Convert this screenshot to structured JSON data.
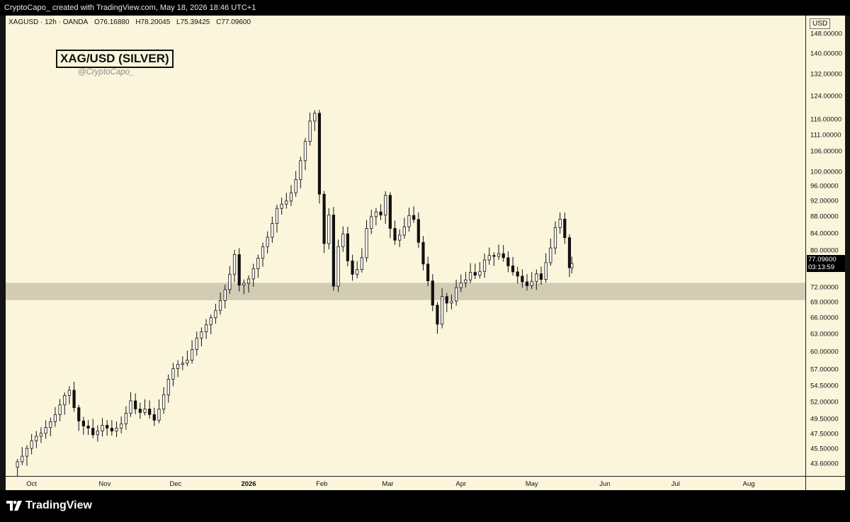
{
  "header": {
    "attribution": "CryptoCapo_ created with TradingView.com, May 18, 2026 18:46 UTC+1"
  },
  "legend": {
    "symbol_line": "XAGUSD · 12h · OANDA",
    "open": "O76.16880",
    "high": "H78.20045",
    "low": "L75.39425",
    "close": "C77.09600"
  },
  "chart_title": "XAG/USD (SILVER)",
  "author_handle": "@CryptoCapo_",
  "price_axis": {
    "currency": "USD",
    "ticks": [
      "148.00000",
      "140.00000",
      "132.00000",
      "124.00000",
      "116.00000",
      "111.00000",
      "106.00000",
      "100.00000",
      "96.00000",
      "92.00000",
      "88.00000",
      "84.00000",
      "80.00000",
      "77.09600",
      "72.00000",
      "69.00000",
      "66.00000",
      "63.00000",
      "60.00000",
      "57.00000",
      "54.50000",
      "52.00000",
      "49.50000",
      "47.50000",
      "45.50000",
      "43.60000"
    ],
    "last_price": "77.09600",
    "countdown": "03:13:59"
  },
  "time_axis": {
    "labels": [
      "Oct",
      "Nov",
      "Dec",
      "2026",
      "Feb",
      "Mar",
      "Apr",
      "May",
      "Jun",
      "Jul",
      "Aug"
    ]
  },
  "footer": {
    "brand": "TradingView"
  },
  "colors": {
    "background": "#fbf5dc",
    "candle_up": "#ffffff",
    "candle_down": "#111111",
    "zone": "#d3ccb5"
  },
  "chart_data": {
    "type": "candlestick",
    "symbol": "XAGUSD",
    "interval": "12h",
    "exchange": "OANDA",
    "scale": "log",
    "ylim": [
      43.0,
      150.0
    ],
    "support_zone": [
      69.5,
      73.0
    ],
    "series": [
      {
        "date": "2025-09-25",
        "close": 43.9
      },
      {
        "date": "2025-09-27",
        "close": 44.6
      },
      {
        "date": "2025-09-29",
        "close": 45.6
      },
      {
        "date": "2025-10-01",
        "close": 46.6
      },
      {
        "date": "2025-10-03",
        "close": 47.2
      },
      {
        "date": "2025-10-05",
        "close": 47.6
      },
      {
        "date": "2025-10-07",
        "close": 48.4
      },
      {
        "date": "2025-10-09",
        "close": 49.2
      },
      {
        "date": "2025-10-11",
        "close": 50.2
      },
      {
        "date": "2025-10-13",
        "close": 51.6
      },
      {
        "date": "2025-10-15",
        "close": 53.0
      },
      {
        "date": "2025-10-17",
        "close": 53.8
      },
      {
        "date": "2025-10-19",
        "close": 51.2
      },
      {
        "date": "2025-10-21",
        "close": 49.3
      },
      {
        "date": "2025-10-23",
        "close": 48.6
      },
      {
        "date": "2025-10-25",
        "close": 48.3
      },
      {
        "date": "2025-10-27",
        "close": 47.4
      },
      {
        "date": "2025-10-29",
        "close": 47.9
      },
      {
        "date": "2025-10-31",
        "close": 48.7
      },
      {
        "date": "2025-11-02",
        "close": 48.3
      },
      {
        "date": "2025-11-04",
        "close": 47.9
      },
      {
        "date": "2025-11-06",
        "close": 48.3
      },
      {
        "date": "2025-11-08",
        "close": 48.9
      },
      {
        "date": "2025-11-10",
        "close": 50.4
      },
      {
        "date": "2025-11-12",
        "close": 52.2
      },
      {
        "date": "2025-11-14",
        "close": 51.0
      },
      {
        "date": "2025-11-16",
        "close": 50.5
      },
      {
        "date": "2025-11-18",
        "close": 51.0
      },
      {
        "date": "2025-11-20",
        "close": 50.2
      },
      {
        "date": "2025-11-22",
        "close": 49.4
      },
      {
        "date": "2025-11-24",
        "close": 51.0
      },
      {
        "date": "2025-11-26",
        "close": 53.1
      },
      {
        "date": "2025-11-28",
        "close": 55.5
      },
      {
        "date": "2025-11-30",
        "close": 57.2
      },
      {
        "date": "2025-12-02",
        "close": 57.9
      },
      {
        "date": "2025-12-04",
        "close": 58.1
      },
      {
        "date": "2025-12-06",
        "close": 58.6
      },
      {
        "date": "2025-12-08",
        "close": 60.4
      },
      {
        "date": "2025-12-10",
        "close": 62.4
      },
      {
        "date": "2025-12-12",
        "close": 63.5
      },
      {
        "date": "2025-12-14",
        "close": 64.8
      },
      {
        "date": "2025-12-16",
        "close": 66.1
      },
      {
        "date": "2025-12-18",
        "close": 67.5
      },
      {
        "date": "2025-12-20",
        "close": 69.4
      },
      {
        "date": "2025-12-22",
        "close": 71.6
      },
      {
        "date": "2025-12-24",
        "close": 74.8
      },
      {
        "date": "2025-12-26",
        "close": 79.1
      },
      {
        "date": "2025-12-28",
        "close": 72.5
      },
      {
        "date": "2025-12-30",
        "close": 72.9
      },
      {
        "date": "2026-01-01",
        "close": 73.8
      },
      {
        "date": "2026-01-03",
        "close": 76.0
      },
      {
        "date": "2026-01-05",
        "close": 78.3
      },
      {
        "date": "2026-01-07",
        "close": 80.9
      },
      {
        "date": "2026-01-09",
        "close": 83.1
      },
      {
        "date": "2026-01-11",
        "close": 86.4
      },
      {
        "date": "2026-01-13",
        "close": 90.2
      },
      {
        "date": "2026-01-15",
        "close": 91.3
      },
      {
        "date": "2026-01-17",
        "close": 92.1
      },
      {
        "date": "2026-01-19",
        "close": 94.3
      },
      {
        "date": "2026-01-21",
        "close": 97.9
      },
      {
        "date": "2026-01-23",
        "close": 103.3
      },
      {
        "date": "2026-01-25",
        "close": 109.1
      },
      {
        "date": "2026-01-27",
        "close": 115.6
      },
      {
        "date": "2026-01-29",
        "close": 118.2
      },
      {
        "date": "2026-01-31",
        "close": 93.9
      },
      {
        "date": "2026-02-02",
        "close": 81.6
      },
      {
        "date": "2026-02-04",
        "close": 88.5
      },
      {
        "date": "2026-02-06",
        "close": 72.3
      },
      {
        "date": "2026-02-08",
        "close": 80.9
      },
      {
        "date": "2026-02-10",
        "close": 83.9
      },
      {
        "date": "2026-02-12",
        "close": 77.7
      },
      {
        "date": "2026-02-14",
        "close": 74.8
      },
      {
        "date": "2026-02-16",
        "close": 75.8
      },
      {
        "date": "2026-02-18",
        "close": 78.4
      },
      {
        "date": "2026-02-20",
        "close": 85.2
      },
      {
        "date": "2026-02-22",
        "close": 88.1
      },
      {
        "date": "2026-02-24",
        "close": 89.3
      },
      {
        "date": "2026-02-26",
        "close": 88.5
      },
      {
        "date": "2026-02-28",
        "close": 93.6
      },
      {
        "date": "2026-03-02",
        "close": 85.2
      },
      {
        "date": "2026-03-04",
        "close": 82.4
      },
      {
        "date": "2026-03-06",
        "close": 83.6
      },
      {
        "date": "2026-03-08",
        "close": 85.6
      },
      {
        "date": "2026-03-10",
        "close": 88.4
      },
      {
        "date": "2026-03-12",
        "close": 87.4
      },
      {
        "date": "2026-03-14",
        "close": 81.9
      },
      {
        "date": "2026-03-16",
        "close": 77.0
      },
      {
        "date": "2026-03-18",
        "close": 73.4
      },
      {
        "date": "2026-03-20",
        "close": 68.5
      },
      {
        "date": "2026-03-22",
        "close": 64.9
      },
      {
        "date": "2026-03-24",
        "close": 70.2
      },
      {
        "date": "2026-03-26",
        "close": 68.9
      },
      {
        "date": "2026-03-28",
        "close": 69.3
      },
      {
        "date": "2026-03-30",
        "close": 72.0
      },
      {
        "date": "2026-04-01",
        "close": 73.0
      },
      {
        "date": "2026-04-03",
        "close": 73.6
      },
      {
        "date": "2026-04-05",
        "close": 75.2
      },
      {
        "date": "2026-04-07",
        "close": 74.6
      },
      {
        "date": "2026-04-09",
        "close": 75.4
      },
      {
        "date": "2026-04-11",
        "close": 77.9
      },
      {
        "date": "2026-04-13",
        "close": 78.9
      },
      {
        "date": "2026-04-15",
        "close": 78.7
      },
      {
        "date": "2026-04-17",
        "close": 79.3
      },
      {
        "date": "2026-04-19",
        "close": 78.4
      },
      {
        "date": "2026-04-21",
        "close": 76.6
      },
      {
        "date": "2026-04-23",
        "close": 75.3
      },
      {
        "date": "2026-04-25",
        "close": 74.4
      },
      {
        "date": "2026-04-27",
        "close": 73.2
      },
      {
        "date": "2026-04-29",
        "close": 72.4
      },
      {
        "date": "2026-05-01",
        "close": 73.3
      },
      {
        "date": "2026-05-03",
        "close": 74.9
      },
      {
        "date": "2026-05-05",
        "close": 73.7
      },
      {
        "date": "2026-05-07",
        "close": 77.3
      },
      {
        "date": "2026-05-09",
        "close": 80.6
      },
      {
        "date": "2026-05-11",
        "close": 85.4
      },
      {
        "date": "2026-05-13",
        "close": 87.5
      },
      {
        "date": "2026-05-15",
        "close": 83.0
      },
      {
        "date": "2026-05-17",
        "close": 76.2
      },
      {
        "date": "2026-05-18",
        "close": 77.1
      }
    ],
    "xlim": [
      "2025-09-20",
      "2026-08-25"
    ],
    "x_ticks": [
      {
        "label": "Oct",
        "date": "2025-10-01"
      },
      {
        "label": "Nov",
        "date": "2025-11-01"
      },
      {
        "label": "Dec",
        "date": "2025-12-01"
      },
      {
        "label": "2026",
        "date": "2026-01-01"
      },
      {
        "label": "Feb",
        "date": "2026-02-01"
      },
      {
        "label": "Mar",
        "date": "2026-03-01"
      },
      {
        "label": "Apr",
        "date": "2026-04-01"
      },
      {
        "label": "May",
        "date": "2026-05-01"
      },
      {
        "label": "Jun",
        "date": "2026-06-01"
      },
      {
        "label": "Jul",
        "date": "2026-07-01"
      },
      {
        "label": "Aug",
        "date": "2026-08-01"
      }
    ]
  }
}
